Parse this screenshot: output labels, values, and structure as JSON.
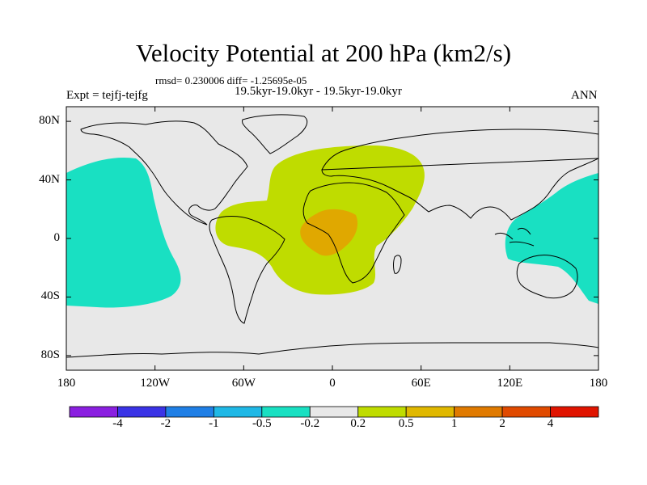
{
  "title": "Velocity Potential at 200 hPa (km2/s)",
  "stats_line": "rmsd= 0.230006 diff= -1.25695e-05",
  "experiment_label": "Expt = tejfj-tejfg",
  "period_label": "19.5kyr-19.0kyr - 19.5kyr-19.0kyr",
  "season_label": "ANN",
  "lat_ticks": [
    {
      "label": "80N",
      "lat": 80
    },
    {
      "label": "40N",
      "lat": 40
    },
    {
      "label": "0",
      "lat": 0
    },
    {
      "label": "40S",
      "lat": -40
    },
    {
      "label": "80S",
      "lat": -80
    }
  ],
  "lon_ticks": [
    {
      "label": "180",
      "lon": -180
    },
    {
      "label": "120W",
      "lon": -120
    },
    {
      "label": "60W",
      "lon": -60
    },
    {
      "label": "0",
      "lon": 0
    },
    {
      "label": "60E",
      "lon": 60
    },
    {
      "label": "120E",
      "lon": 120
    },
    {
      "label": "180",
      "lon": 180
    }
  ],
  "colorbar": {
    "colors": [
      "#8a1fe0",
      "#3a33e6",
      "#1f7fe6",
      "#1fb8e6",
      "#19e0c2",
      "#e8e8e8",
      "#bfdc00",
      "#e0b800",
      "#e07a00",
      "#e04a00",
      "#e01400"
    ],
    "labels": [
      "-4",
      "-2",
      "-1",
      "-0.5",
      "-0.2",
      "0.2",
      "0.5",
      "1",
      "2",
      "4"
    ]
  },
  "colors": {
    "background": "#e8e8e8",
    "negative_fill": "#19e0c2",
    "positive_fill": "#bfdc00",
    "positive_core_fill": "#e0a800",
    "coastline": "#000000"
  }
}
